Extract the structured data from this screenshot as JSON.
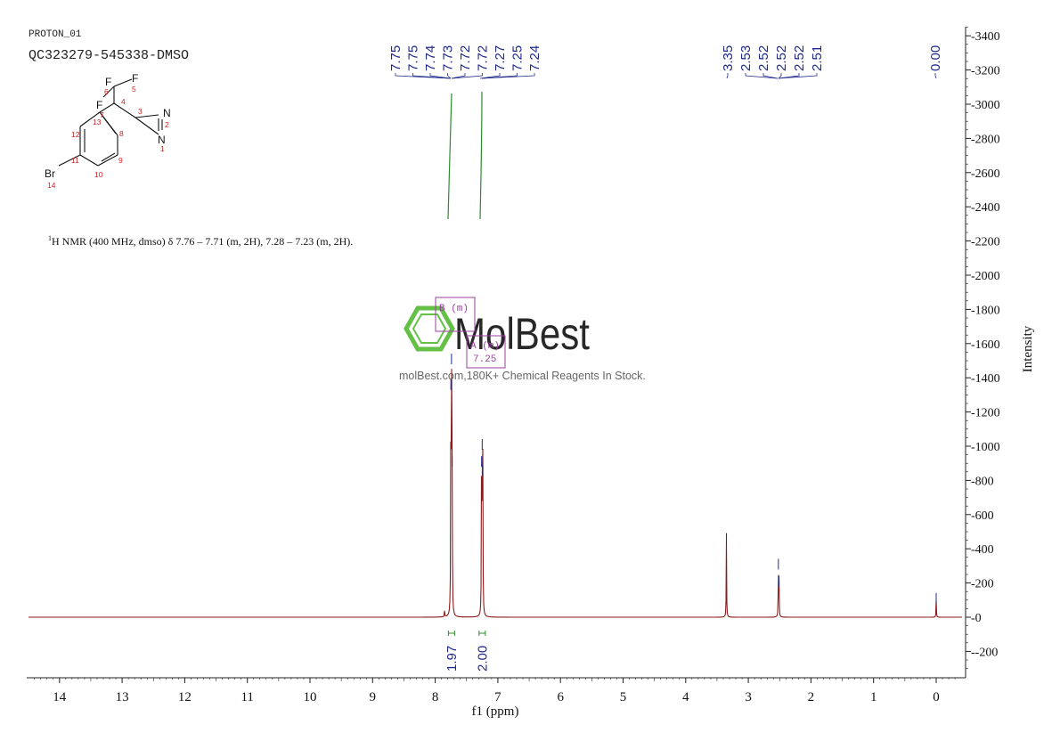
{
  "header": {
    "experiment": "PROTON_01",
    "sample": "QC323279-545338-DMSO"
  },
  "structure": {
    "atoms": [
      "F",
      "F",
      "F",
      "N",
      "N",
      "Br"
    ],
    "atom_numbers": [
      "1",
      "2",
      "3",
      "4",
      "5",
      "6",
      "7",
      "8",
      "9",
      "10",
      "11",
      "12",
      "13",
      "14"
    ]
  },
  "nmr_text": {
    "superscript": "1",
    "text": "H NMR (400 MHz, dmso) δ 7.76 – 7.71 (m, 2H), 7.28 – 7.23 (m, 2H)."
  },
  "watermark": {
    "brand": "MolBest",
    "tagline": "molBest.com,180K+ Chemical Reagents In Stock."
  },
  "multiplets": [
    {
      "label": "B (m)",
      "shift": ""
    },
    {
      "label": "A (m)",
      "shift": "7.25"
    }
  ],
  "colors": {
    "spectrum": "#8b1a1a",
    "labels": "#1f2a8a",
    "integral": "#2e8b2e",
    "multiplet_box": "#9b3fa0",
    "watermark": "#55bb33",
    "atom_red": "#cc2222",
    "axis": "#222222"
  },
  "chart_data": {
    "type": "line",
    "title": "",
    "xlabel": "f1 (ppm)",
    "ylabel": "Intensity",
    "x_reversed": true,
    "xlim": [
      14.5,
      -0.4
    ],
    "ylim": [
      -300,
      3500
    ],
    "x_ticks": [
      14,
      13,
      12,
      11,
      10,
      9,
      8,
      7,
      6,
      5,
      4,
      3,
      2,
      1,
      0
    ],
    "y_ticks": [
      -200,
      0,
      200,
      400,
      600,
      800,
      1000,
      1200,
      1400,
      1600,
      1800,
      2000,
      2200,
      2400,
      2600,
      2800,
      3000,
      3200,
      3400
    ],
    "peaks": [
      {
        "ppm": 7.85,
        "height": 45
      },
      {
        "ppm": 7.75,
        "height": 1350
      },
      {
        "ppm": 7.74,
        "height": 1500
      },
      {
        "ppm": 7.73,
        "height": 900
      },
      {
        "ppm": 7.26,
        "height": 900
      },
      {
        "ppm": 7.25,
        "height": 1000
      },
      {
        "ppm": 7.24,
        "height": 850
      },
      {
        "ppm": 3.35,
        "height": 450
      },
      {
        "ppm": 2.52,
        "height": 300
      },
      {
        "ppm": 2.51,
        "height": 200
      },
      {
        "ppm": 0.0,
        "height": 100
      }
    ],
    "peak_labels_left": [
      "7.75",
      "7.75",
      "7.74",
      "7.73",
      "7.72",
      "7.72",
      "7.27",
      "7.25",
      "7.24"
    ],
    "peak_labels_mid": [
      "3.35",
      "2.53",
      "2.52",
      "2.52",
      "2.52",
      "2.51"
    ],
    "peak_labels_right": [
      "0.00"
    ],
    "integrals": [
      {
        "ppm_from": 7.79,
        "ppm_to": 7.69,
        "value": "1.97"
      },
      {
        "ppm_from": 7.3,
        "ppm_to": 7.2,
        "value": "2.00"
      }
    ]
  }
}
